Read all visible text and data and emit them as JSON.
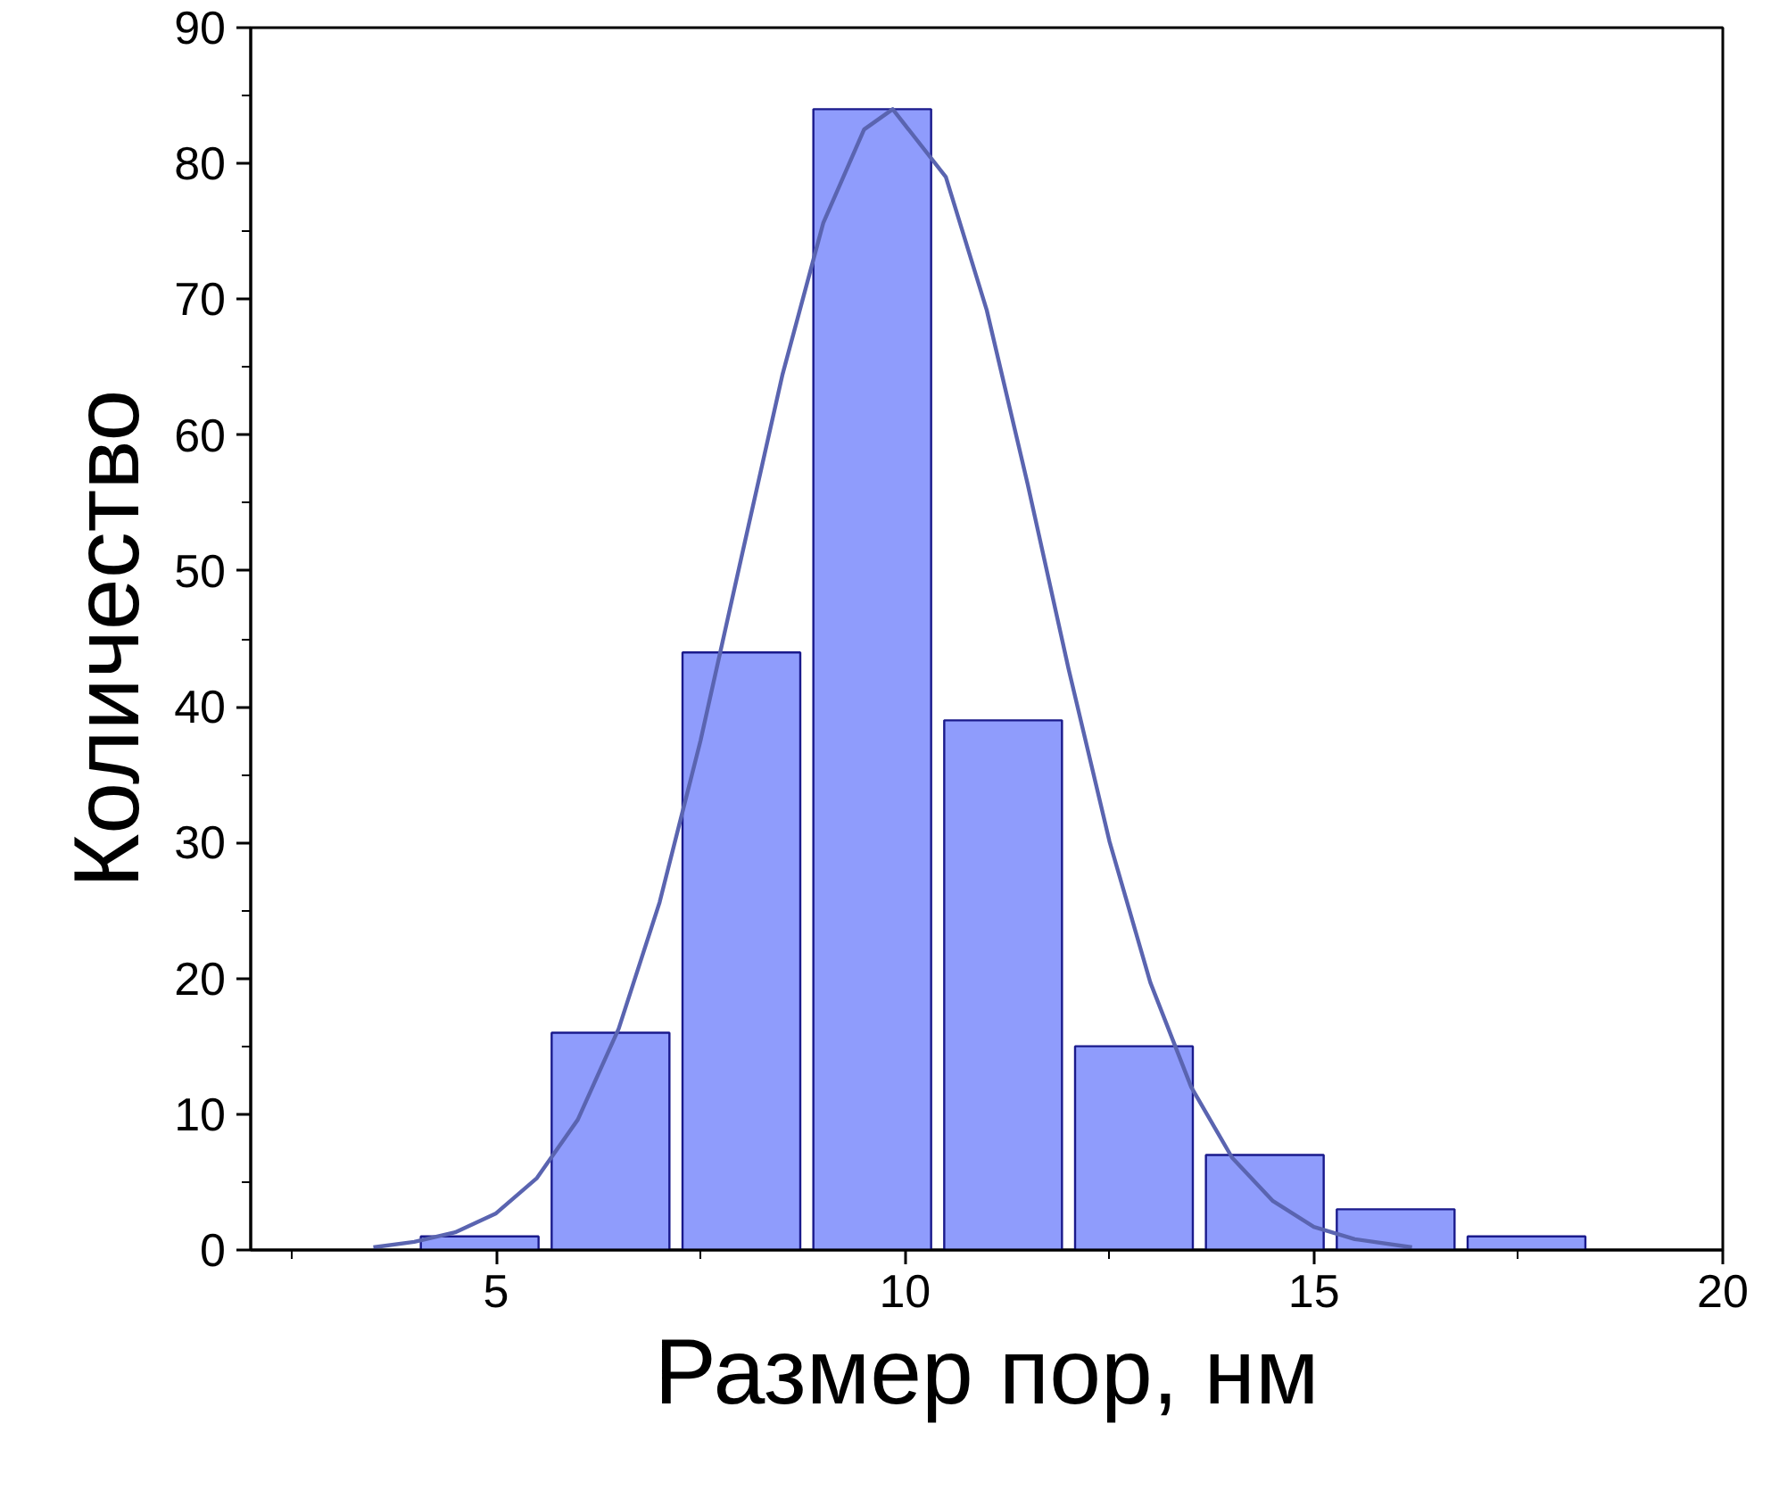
{
  "chart_data": {
    "type": "histogram",
    "xlabel": "Размер пор, нм",
    "ylabel": "Количество",
    "xlim": [
      2,
      20
    ],
    "ylim": [
      0,
      90
    ],
    "xticks": [
      5,
      10,
      15,
      20
    ],
    "yticks": [
      0,
      10,
      20,
      30,
      40,
      50,
      60,
      70,
      80,
      90
    ],
    "series": [
      {
        "color": "#8f9cfc",
        "bins": [
          4,
          5.6,
          7.2,
          8.8,
          10.4,
          12.0,
          13.6,
          15.2,
          16.8,
          18.4
        ],
        "values": [
          1,
          16,
          44,
          84,
          39,
          15,
          7,
          3,
          1
        ]
      },
      {
        "type": "line",
        "color": "#5a64b0",
        "x": [
          3.5,
          4,
          4.5,
          5,
          5.5,
          6,
          6.5,
          7,
          7.5,
          8,
          8.5,
          9,
          9.5,
          9.85,
          10.5,
          11,
          11.5,
          12,
          12.5,
          13,
          13.5,
          14,
          14.5,
          15,
          15.5,
          16.2
        ],
        "values": [
          0.2,
          0.6,
          1.3,
          2.7,
          5.3,
          9.6,
          16.3,
          25.6,
          37.5,
          51,
          64.4,
          75.6,
          82.5,
          84,
          79,
          69.2,
          56.4,
          42.8,
          30.1,
          19.7,
          12,
          6.8,
          3.6,
          1.7,
          0.8,
          0.2
        ]
      }
    ]
  }
}
